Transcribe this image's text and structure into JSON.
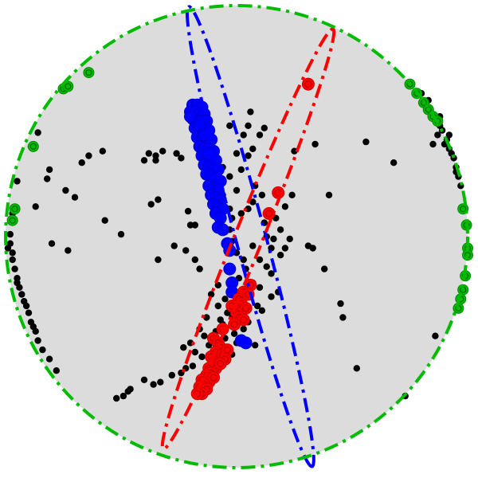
{
  "chart_data": {
    "type": "scatter",
    "title": "",
    "xlabel": "",
    "ylabel": "",
    "xlim": [
      -1,
      1
    ],
    "ylim": [
      -1,
      1
    ],
    "grid": false,
    "legend": "none",
    "colors": {
      "background_disk": "#dcdcdc",
      "boundary": "#00bb00",
      "black": "#000000",
      "red": "#ff0000",
      "blue": "#0000ff"
    },
    "boundary_circle": {
      "cx": 0,
      "cy": 0,
      "r": 1
    },
    "ellipses": [
      {
        "name": "",
        "color": "#0000ff",
        "cx": 0.06,
        "cy": 0.0,
        "rx": 1.03,
        "ry": 0.065,
        "angle_deg": -75
      },
      {
        "name": "",
        "color": "#ff0000",
        "cx": 0.05,
        "cy": -0.01,
        "rx": 0.98,
        "ry": 0.06,
        "angle_deg": 68
      }
    ],
    "series": [
      {
        "name": "",
        "kind": "green-ring",
        "color": "#00bb00",
        "points": [
          [
            -0.75,
            0.64
          ],
          [
            -0.73,
            0.65
          ],
          [
            -0.64,
            0.71
          ],
          [
            -0.88,
            0.39
          ],
          [
            -0.96,
            0.12
          ],
          [
            -0.97,
            0.07
          ],
          [
            0.75,
            0.66
          ],
          [
            0.78,
            0.62
          ],
          [
            0.81,
            0.58
          ],
          [
            0.83,
            0.55
          ],
          [
            0.85,
            0.52
          ],
          [
            0.87,
            0.5
          ],
          [
            0.98,
            0.12
          ],
          [
            0.995,
            0.05
          ],
          [
            1.0,
            -0.05
          ],
          [
            1.0,
            -0.08
          ],
          [
            0.99,
            -0.17
          ],
          [
            0.98,
            -0.23
          ],
          [
            0.97,
            -0.27
          ],
          [
            0.96,
            -0.31
          ]
        ]
      },
      {
        "name": "",
        "kind": "black-dot",
        "color": "#000000",
        "points": [
          [
            -0.86,
            0.45
          ],
          [
            -0.89,
            0.39
          ],
          [
            -0.95,
            0.24
          ],
          [
            -0.97,
            0.1
          ],
          [
            -0.98,
            0.01
          ],
          [
            -0.99,
            -0.05
          ],
          [
            -0.97,
            -0.1
          ],
          [
            -0.96,
            -0.14
          ],
          [
            -0.95,
            -0.18
          ],
          [
            -0.94,
            -0.22
          ],
          [
            -0.93,
            -0.25
          ],
          [
            -0.92,
            -0.28
          ],
          [
            -0.9,
            -0.33
          ],
          [
            -0.89,
            -0.37
          ],
          [
            -0.87,
            -0.41
          ],
          [
            -0.86,
            -0.45
          ],
          [
            -0.84,
            -0.49
          ],
          [
            -0.81,
            -0.53
          ],
          [
            -0.78,
            -0.58
          ],
          [
            -0.95,
            -0.2
          ],
          [
            -0.91,
            -0.3
          ],
          [
            -0.88,
            -0.39
          ],
          [
            -0.97,
            -0.07
          ],
          [
            -0.98,
            -0.03
          ],
          [
            0.8,
            0.62
          ],
          [
            0.82,
            0.57
          ],
          [
            0.84,
            0.54
          ],
          [
            0.86,
            0.51
          ],
          [
            0.88,
            0.48
          ],
          [
            0.89,
            0.46
          ],
          [
            0.91,
            0.42
          ],
          [
            0.92,
            0.38
          ],
          [
            0.94,
            0.34
          ],
          [
            0.95,
            0.3
          ],
          [
            0.96,
            0.26
          ],
          [
            0.97,
            0.22
          ],
          [
            0.85,
            0.4
          ],
          [
            0.87,
            0.44
          ],
          [
            0.9,
            0.4
          ],
          [
            0.93,
            0.36
          ],
          [
            0.95,
            0.28
          ],
          [
            0.83,
            0.59
          ],
          [
            0.88,
            0.52
          ],
          [
            0.92,
            0.44
          ],
          [
            0.86,
            -0.43
          ],
          [
            0.73,
            -0.69
          ],
          [
            0.52,
            -0.57
          ],
          [
            0.4,
            0.18
          ],
          [
            0.56,
            0.41
          ],
          [
            0.68,
            0.32
          ],
          [
            0.1,
            0.44
          ],
          [
            0.05,
            0.35
          ],
          [
            0.02,
            0.29
          ],
          [
            0.08,
            0.22
          ],
          [
            0.11,
            0.18
          ],
          [
            0.05,
            0.12
          ],
          [
            0.15,
            -0.05
          ],
          [
            0.19,
            -0.08
          ],
          [
            0.21,
            -0.05
          ],
          [
            0.23,
            -0.01
          ],
          [
            0.31,
            -0.04
          ],
          [
            0.33,
            -0.05
          ],
          [
            0.38,
            -0.14
          ],
          [
            0.45,
            -0.29
          ],
          [
            0.46,
            -0.35
          ],
          [
            0.15,
            -0.16
          ],
          [
            0.15,
            -0.26
          ],
          [
            0.18,
            -0.24
          ],
          [
            0.09,
            -0.3
          ],
          [
            0.11,
            -0.32
          ],
          [
            0.07,
            -0.2
          ],
          [
            0.03,
            -0.1
          ],
          [
            0.0,
            -0.07
          ],
          [
            -0.02,
            -0.02
          ],
          [
            -0.05,
            0.02
          ],
          [
            -0.02,
            0.08
          ],
          [
            -0.03,
            0.12
          ],
          [
            -0.06,
            0.18
          ],
          [
            -0.08,
            0.24
          ],
          [
            -0.09,
            0.3
          ],
          [
            -0.32,
            0.37
          ],
          [
            -0.38,
            0.36
          ],
          [
            -0.35,
            0.35
          ],
          [
            -0.26,
            0.36
          ],
          [
            -0.24,
            0.34
          ],
          [
            -0.16,
            0.37
          ],
          [
            -0.11,
            0.33
          ],
          [
            -0.06,
            0.3
          ],
          [
            -0.21,
            0.11
          ],
          [
            -0.2,
            0.05
          ],
          [
            -0.03,
            0.03
          ],
          [
            -0.18,
            -0.1
          ],
          [
            -0.16,
            -0.14
          ],
          [
            -0.22,
            -0.06
          ],
          [
            -0.27,
            -0.04
          ],
          [
            -0.34,
            -0.1
          ],
          [
            -0.34,
            0.16
          ],
          [
            -0.37,
            0.14
          ],
          [
            -0.57,
            0.07
          ],
          [
            -0.5,
            0.01
          ],
          [
            -0.73,
            -0.06
          ],
          [
            -0.7,
            0.17
          ],
          [
            -0.64,
            0.35
          ],
          [
            -0.58,
            0.37
          ],
          [
            0.34,
            0.4
          ],
          [
            0.17,
            0.08
          ],
          [
            0.25,
            0.37
          ],
          [
            0.24,
            0.18
          ],
          [
            0.21,
            0.13
          ],
          [
            0.07,
            0.38
          ],
          [
            0.05,
            0.48
          ],
          [
            0.03,
            -0.4
          ],
          [
            -0.02,
            -0.35
          ],
          [
            -0.06,
            -0.38
          ],
          [
            -0.1,
            -0.45
          ],
          [
            -0.12,
            -0.47
          ],
          [
            -0.15,
            -0.52
          ],
          [
            -0.19,
            -0.56
          ],
          [
            -0.22,
            -0.57
          ],
          [
            -0.24,
            -0.59
          ],
          [
            -0.28,
            -0.6
          ],
          [
            -0.33,
            -0.63
          ],
          [
            -0.36,
            -0.64
          ],
          [
            -0.4,
            -0.62
          ],
          [
            -0.46,
            -0.66
          ],
          [
            -0.47,
            -0.67
          ],
          [
            -0.49,
            -0.69
          ],
          [
            -0.52,
            -0.7
          ],
          [
            -0.05,
            -0.27
          ],
          [
            -0.08,
            -0.3
          ],
          [
            -0.13,
            -0.35
          ],
          [
            -0.02,
            -0.25
          ],
          [
            0.01,
            -0.18
          ],
          [
            0.04,
            -0.14
          ],
          [
            -0.08,
            -0.21
          ],
          [
            -0.11,
            -0.25
          ],
          [
            -0.16,
            -0.4
          ],
          [
            -0.2,
            -0.46
          ],
          [
            -0.23,
            -0.48
          ],
          [
            -0.09,
            -0.41
          ],
          [
            0.0,
            -0.46
          ],
          [
            0.08,
            -0.47
          ],
          [
            0.04,
            -0.3
          ],
          [
            0.06,
            -0.26
          ],
          [
            0.1,
            -0.22
          ],
          [
            0.13,
            -0.13
          ],
          [
            0.16,
            -0.01
          ],
          [
            0.19,
            0.03
          ],
          [
            0.02,
            0.1
          ],
          [
            0.07,
            0.15
          ],
          [
            0.0,
            0.2
          ],
          [
            -0.03,
            0.26
          ],
          [
            0.0,
            0.36
          ],
          [
            0.03,
            0.44
          ],
          [
            0.06,
            0.54
          ],
          [
            -0.03,
            0.48
          ],
          [
            0.12,
            0.47
          ],
          [
            -0.18,
            0.05
          ],
          [
            0.05,
            -0.37
          ],
          [
            0.02,
            -0.33
          ],
          [
            -0.04,
            -0.33
          ],
          [
            -0.07,
            -0.36
          ],
          [
            -0.01,
            -0.42
          ],
          [
            -0.05,
            -0.44
          ],
          [
            -0.14,
            -0.43
          ],
          [
            -0.18,
            -0.5
          ],
          [
            -0.11,
            -0.53
          ],
          [
            -0.02,
            -0.51
          ],
          [
            0.07,
            -0.04
          ],
          [
            0.12,
            0.06
          ],
          [
            0.13,
            0.0
          ],
          [
            0.1,
            -0.1
          ],
          [
            -0.67,
            0.32
          ],
          [
            -0.82,
            0.25
          ],
          [
            -0.74,
            0.2
          ],
          [
            -0.8,
            -0.03
          ],
          [
            -0.87,
            0.13
          ],
          [
            -0.81,
            0.29
          ],
          [
            -0.35,
            0.33
          ],
          [
            -0.4,
            0.33
          ]
        ]
      },
      {
        "name": "",
        "kind": "blue",
        "color": "#0000ff",
        "points": [
          [
            -0.19,
            0.57
          ],
          [
            -0.17,
            0.57
          ],
          [
            -0.15,
            0.56
          ],
          [
            -0.2,
            0.54
          ],
          [
            -0.18,
            0.54
          ],
          [
            -0.16,
            0.53
          ],
          [
            -0.14,
            0.53
          ],
          [
            -0.19,
            0.51
          ],
          [
            -0.17,
            0.5
          ],
          [
            -0.15,
            0.5
          ],
          [
            -0.13,
            0.5
          ],
          [
            -0.18,
            0.47
          ],
          [
            -0.16,
            0.46
          ],
          [
            -0.14,
            0.46
          ],
          [
            -0.12,
            0.46
          ],
          [
            -0.17,
            0.43
          ],
          [
            -0.15,
            0.42
          ],
          [
            -0.13,
            0.42
          ],
          [
            -0.11,
            0.42
          ],
          [
            -0.16,
            0.39
          ],
          [
            -0.14,
            0.38
          ],
          [
            -0.12,
            0.38
          ],
          [
            -0.1,
            0.37
          ],
          [
            -0.15,
            0.35
          ],
          [
            -0.13,
            0.34
          ],
          [
            -0.11,
            0.33
          ],
          [
            -0.09,
            0.33
          ],
          [
            -0.14,
            0.31
          ],
          [
            -0.12,
            0.3
          ],
          [
            -0.1,
            0.29
          ],
          [
            -0.08,
            0.29
          ],
          [
            -0.13,
            0.27
          ],
          [
            -0.11,
            0.26
          ],
          [
            -0.09,
            0.25
          ],
          [
            -0.07,
            0.24
          ],
          [
            -0.12,
            0.22
          ],
          [
            -0.1,
            0.21
          ],
          [
            -0.08,
            0.2
          ],
          [
            -0.11,
            0.18
          ],
          [
            -0.09,
            0.17
          ],
          [
            -0.07,
            0.16
          ],
          [
            -0.1,
            0.14
          ],
          [
            -0.08,
            0.12
          ],
          [
            -0.06,
            0.12
          ],
          [
            -0.09,
            0.1
          ],
          [
            -0.07,
            0.08
          ],
          [
            -0.08,
            0.04
          ],
          [
            -0.06,
            0.03
          ],
          [
            -0.04,
            -0.03
          ],
          [
            -0.03,
            -0.06
          ],
          [
            -0.03,
            -0.14
          ],
          [
            -0.02,
            -0.2
          ],
          [
            -0.02,
            -0.24
          ],
          [
            0.02,
            -0.45
          ],
          [
            0.04,
            -0.46
          ],
          [
            -0.2,
            0.52
          ],
          [
            -0.16,
            0.48
          ],
          [
            -0.14,
            0.44
          ],
          [
            -0.12,
            0.36
          ]
        ]
      },
      {
        "name": "",
        "kind": "red",
        "color": "#ff0000",
        "points": [
          [
            0.31,
            0.66
          ],
          [
            0.18,
            0.19
          ],
          [
            0.14,
            0.1
          ],
          [
            0.06,
            -0.21
          ],
          [
            0.03,
            -0.24
          ],
          [
            0.01,
            -0.27
          ],
          [
            0.05,
            -0.25
          ],
          [
            0.02,
            -0.29
          ],
          [
            0.04,
            -0.31
          ],
          [
            0.0,
            -0.33
          ],
          [
            -0.02,
            -0.3
          ],
          [
            0.01,
            -0.35
          ],
          [
            0.03,
            -0.36
          ],
          [
            -0.01,
            -0.38
          ],
          [
            -0.06,
            -0.4
          ],
          [
            -0.1,
            -0.44
          ],
          [
            -0.08,
            -0.46
          ],
          [
            -0.07,
            -0.48
          ],
          [
            -0.09,
            -0.5
          ],
          [
            -0.11,
            -0.52
          ],
          [
            -0.08,
            -0.53
          ],
          [
            -0.1,
            -0.55
          ],
          [
            -0.12,
            -0.57
          ],
          [
            -0.09,
            -0.57
          ],
          [
            -0.11,
            -0.59
          ],
          [
            -0.13,
            -0.6
          ],
          [
            -0.15,
            -0.62
          ],
          [
            -0.12,
            -0.63
          ],
          [
            -0.14,
            -0.64
          ],
          [
            -0.16,
            -0.65
          ],
          [
            -0.13,
            -0.66
          ],
          [
            -0.15,
            -0.68
          ],
          [
            -0.17,
            -0.68
          ],
          [
            -0.06,
            -0.51
          ],
          [
            -0.04,
            -0.49
          ],
          [
            -0.05,
            -0.53
          ],
          [
            -0.07,
            -0.55
          ],
          [
            -0.1,
            -0.61
          ]
        ]
      }
    ]
  }
}
